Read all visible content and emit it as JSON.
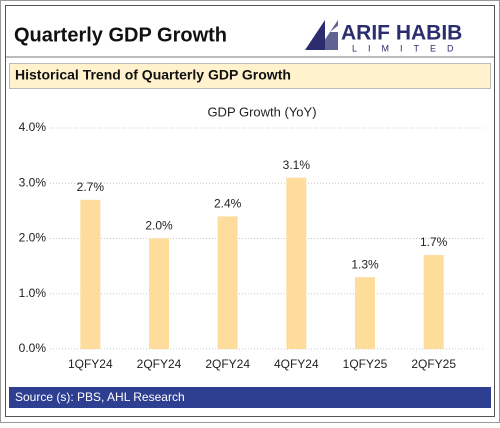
{
  "header": {
    "title": "Quarterly GDP Growth"
  },
  "logo": {
    "name": "ARIF HABIB",
    "subtitle": "LIMITED"
  },
  "chart_data": {
    "type": "bar",
    "subtitle": "Historical Trend of Quarterly GDP Growth",
    "title": "GDP Growth (YoY)",
    "categories": [
      "1QFY24",
      "2QFY24",
      "2QFY24",
      "4QFY24",
      "1QFY25",
      "2QFY25"
    ],
    "values": [
      2.7,
      2.0,
      2.4,
      3.1,
      1.3,
      1.7
    ],
    "value_labels": [
      "2.7%",
      "2.0%",
      "2.4%",
      "3.1%",
      "1.3%",
      "1.7%"
    ],
    "color": "#fddc9c",
    "ylim": [
      0,
      4
    ],
    "yticks": [
      {
        "value": 0,
        "label": "0.0%"
      },
      {
        "value": 1,
        "label": "1.0%"
      },
      {
        "value": 2,
        "label": "2.0%"
      },
      {
        "value": 3,
        "label": "3.0%"
      },
      {
        "value": 4,
        "label": "4.0%"
      }
    ],
    "grid": true
  },
  "footer": {
    "source": "Source (s): PBS, AHL Research"
  }
}
